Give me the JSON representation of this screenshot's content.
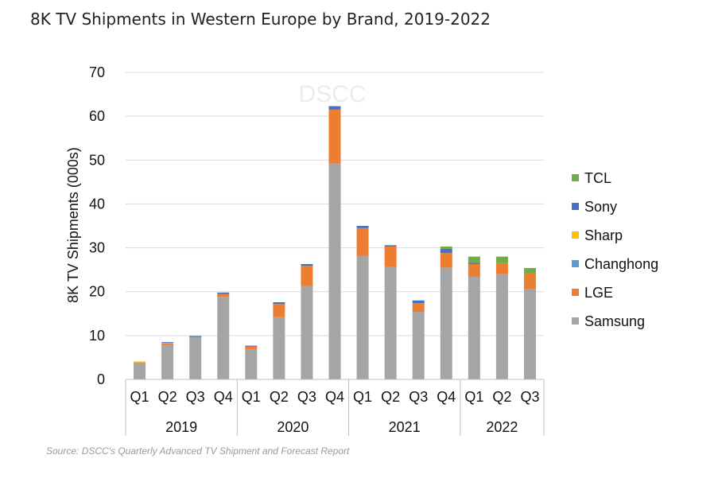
{
  "title": "8K TV Shipments in Western Europe by Brand, 2019-2022",
  "watermark": "DSCC",
  "source": "Source: DSCC's Quarterly Advanced TV Shipment and Forecast Report",
  "chart_data": {
    "type": "bar",
    "stacked": true,
    "ylabel": "8K TV Shipments (000s)",
    "ylim": [
      0,
      70
    ],
    "yticks": [
      0,
      10,
      20,
      30,
      40,
      50,
      60,
      70
    ],
    "grid": true,
    "legend_position": "right",
    "categories": [
      "Q1",
      "Q2",
      "Q3",
      "Q4",
      "Q1",
      "Q2",
      "Q3",
      "Q4",
      "Q1",
      "Q2",
      "Q3",
      "Q4",
      "Q1",
      "Q2",
      "Q3"
    ],
    "groups": [
      {
        "label": "2019",
        "count": 4
      },
      {
        "label": "2020",
        "count": 4
      },
      {
        "label": "2021",
        "count": 4
      },
      {
        "label": "2022",
        "count": 3
      }
    ],
    "series": [
      {
        "name": "Samsung",
        "color": "#a5a5a5",
        "values": [
          3.7,
          7.9,
          9.6,
          18.8,
          6.9,
          14.2,
          21.3,
          49.2,
          28.2,
          25.6,
          15.4,
          25.5,
          23.4,
          24.0,
          20.6
        ]
      },
      {
        "name": "LGE",
        "color": "#ed7d31",
        "values": [
          0.1,
          0.3,
          0.1,
          0.7,
          0.6,
          3.0,
          4.6,
          12.3,
          6.3,
          4.7,
          2.0,
          3.3,
          2.9,
          2.5,
          3.6
        ]
      },
      {
        "name": "Changhong",
        "color": "#5b9bd5",
        "values": [
          0.0,
          0.0,
          0.0,
          0.0,
          0.0,
          0.0,
          0.0,
          0.0,
          0.0,
          0.0,
          0.0,
          0.0,
          0.0,
          0.0,
          0.0
        ]
      },
      {
        "name": "Sharp",
        "color": "#ffc000",
        "values": [
          0.3,
          0.1,
          0.0,
          0.0,
          0.0,
          0.0,
          0.0,
          0.0,
          0.0,
          0.0,
          0.0,
          0.0,
          0.0,
          0.0,
          0.0
        ]
      },
      {
        "name": "Sony",
        "color": "#4472c4",
        "values": [
          0.0,
          0.2,
          0.2,
          0.3,
          0.2,
          0.4,
          0.4,
          0.8,
          0.5,
          0.3,
          0.6,
          1.0,
          0.3,
          0.0,
          0.0
        ]
      },
      {
        "name": "TCL",
        "color": "#70ad47",
        "values": [
          0.0,
          0.0,
          0.0,
          0.0,
          0.0,
          0.0,
          0.0,
          0.0,
          0.0,
          0.0,
          0.0,
          0.5,
          1.4,
          1.5,
          1.2
        ]
      }
    ]
  }
}
